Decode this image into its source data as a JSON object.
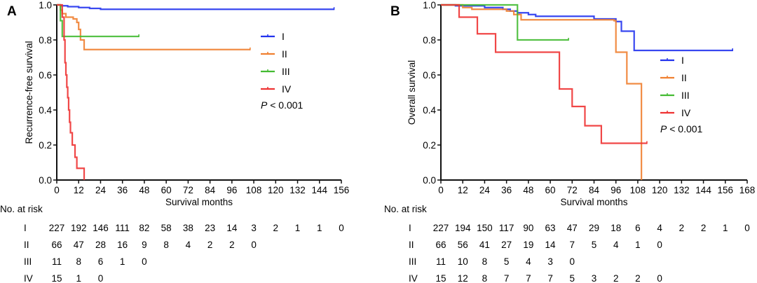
{
  "colors": {
    "I": "#2233ee",
    "II": "#f08030",
    "III": "#44bb33",
    "IV": "#ee3333",
    "axis": "#111111"
  },
  "chart_data": [
    {
      "type": "line",
      "panel": "A",
      "title": "",
      "xlabel": "Survival months",
      "ylabel": "Recurrence-free survival",
      "xlim": [
        0,
        156
      ],
      "ylim": [
        0,
        1.0
      ],
      "xticks": [
        0,
        12,
        24,
        36,
        48,
        60,
        72,
        84,
        96,
        108,
        120,
        132,
        144,
        156
      ],
      "yticks": [
        "0.0",
        "0.2",
        "0.4",
        "0.6",
        "0.8",
        "1.0"
      ],
      "legend": [
        "I",
        "II",
        "III",
        "IV"
      ],
      "legend_placement": "right-middle",
      "annotation": "P < 0.001",
      "series": [
        {
          "name": "I",
          "steps": [
            [
              0,
              1.0
            ],
            [
              2,
              0.995
            ],
            [
              6,
              0.99
            ],
            [
              12,
              0.985
            ],
            [
              18,
              0.98
            ],
            [
              24,
              0.975
            ],
            [
              152,
              0.975
            ]
          ]
        },
        {
          "name": "II",
          "steps": [
            [
              0,
              1.0
            ],
            [
              2,
              0.97
            ],
            [
              3,
              0.95
            ],
            [
              5,
              0.93
            ],
            [
              9,
              0.92
            ],
            [
              11,
              0.9
            ],
            [
              12,
              0.86
            ],
            [
              13,
              0.8
            ],
            [
              15,
              0.745
            ],
            [
              106,
              0.745
            ]
          ]
        },
        {
          "name": "III",
          "steps": [
            [
              0,
              1.0
            ],
            [
              2,
              0.91
            ],
            [
              3,
              0.82
            ],
            [
              45,
              0.82
            ]
          ]
        },
        {
          "name": "IV",
          "steps": [
            [
              0,
              1.0
            ],
            [
              3,
              0.93
            ],
            [
              4,
              0.8
            ],
            [
              4.5,
              0.67
            ],
            [
              5,
              0.6
            ],
            [
              5.5,
              0.53
            ],
            [
              6,
              0.47
            ],
            [
              6.5,
              0.4
            ],
            [
              7,
              0.33
            ],
            [
              7.5,
              0.27
            ],
            [
              8.5,
              0.2
            ],
            [
              10,
              0.13
            ],
            [
              11,
              0.067
            ],
            [
              15,
              0.0
            ]
          ]
        }
      ],
      "at_risk": {
        "label": "No. at risk",
        "times": [
          0,
          12,
          24,
          36,
          48,
          60,
          72,
          84,
          96,
          108,
          120,
          132,
          144,
          156
        ],
        "rows": [
          {
            "group": "I",
            "values": [
              "227",
              "192",
              "146",
              "111",
              "82",
              "58",
              "38",
              "23",
              "14",
              "3",
              "2",
              "1",
              "1",
              "0"
            ]
          },
          {
            "group": "II",
            "values": [
              "66",
              "47",
              "28",
              "16",
              "9",
              "8",
              "4",
              "2",
              "2",
              "0"
            ]
          },
          {
            "group": "III",
            "values": [
              "11",
              "8",
              "6",
              "1",
              "0"
            ]
          },
          {
            "group": "IV",
            "values": [
              "15",
              "1",
              "0"
            ]
          }
        ]
      }
    },
    {
      "type": "line",
      "panel": "B",
      "title": "",
      "xlabel": "Survival months",
      "ylabel": "Overall survival",
      "xlim": [
        0,
        168
      ],
      "ylim": [
        0,
        1.0
      ],
      "xticks": [
        0,
        12,
        24,
        36,
        48,
        60,
        72,
        84,
        96,
        108,
        120,
        132,
        144,
        156,
        168
      ],
      "yticks": [
        "0.0",
        "0.2",
        "0.4",
        "0.6",
        "0.8",
        "1.0"
      ],
      "legend": [
        "I",
        "II",
        "III",
        "IV"
      ],
      "legend_placement": "right-middle",
      "annotation": "P < 0.001",
      "series": [
        {
          "name": "I",
          "steps": [
            [
              0,
              1.0
            ],
            [
              8,
              0.995
            ],
            [
              24,
              0.985
            ],
            [
              34,
              0.975
            ],
            [
              38,
              0.965
            ],
            [
              42,
              0.955
            ],
            [
              48,
              0.945
            ],
            [
              52,
              0.935
            ],
            [
              84,
              0.92
            ],
            [
              96,
              0.905
            ],
            [
              99,
              0.85
            ],
            [
              106,
              0.74
            ],
            [
              160,
              0.74
            ]
          ]
        },
        {
          "name": "II",
          "steps": [
            [
              0,
              1.0
            ],
            [
              12,
              0.985
            ],
            [
              17,
              0.975
            ],
            [
              36,
              0.965
            ],
            [
              40,
              0.945
            ],
            [
              44,
              0.915
            ],
            [
              95,
              0.91
            ],
            [
              96,
              0.73
            ],
            [
              102,
              0.55
            ],
            [
              110,
              0.0
            ]
          ]
        },
        {
          "name": "III",
          "steps": [
            [
              0,
              1.0
            ],
            [
              42,
              0.8
            ],
            [
              70,
              0.8
            ]
          ]
        },
        {
          "name": "IV",
          "steps": [
            [
              0,
              1.0
            ],
            [
              10,
              0.93
            ],
            [
              20,
              0.835
            ],
            [
              30,
              0.73
            ],
            [
              65,
              0.52
            ],
            [
              72,
              0.42
            ],
            [
              79,
              0.31
            ],
            [
              88,
              0.21
            ],
            [
              113,
              0.21
            ]
          ]
        }
      ],
      "at_risk": {
        "label": "No. at risk",
        "times": [
          0,
          12,
          24,
          36,
          48,
          60,
          72,
          84,
          96,
          108,
          120,
          132,
          144,
          156,
          168
        ],
        "rows": [
          {
            "group": "I",
            "values": [
              "227",
              "194",
              "150",
              "117",
              "90",
              "63",
              "47",
              "29",
              "18",
              "6",
              "4",
              "2",
              "2",
              "1",
              "0"
            ]
          },
          {
            "group": "II",
            "values": [
              "66",
              "56",
              "41",
              "27",
              "19",
              "14",
              "7",
              "5",
              "4",
              "1",
              "0"
            ]
          },
          {
            "group": "III",
            "values": [
              "11",
              "10",
              "8",
              "5",
              "4",
              "3",
              "0"
            ]
          },
          {
            "group": "IV",
            "values": [
              "15",
              "12",
              "8",
              "7",
              "7",
              "7",
              "5",
              "3",
              "2",
              "2",
              "0"
            ]
          }
        ]
      }
    }
  ]
}
